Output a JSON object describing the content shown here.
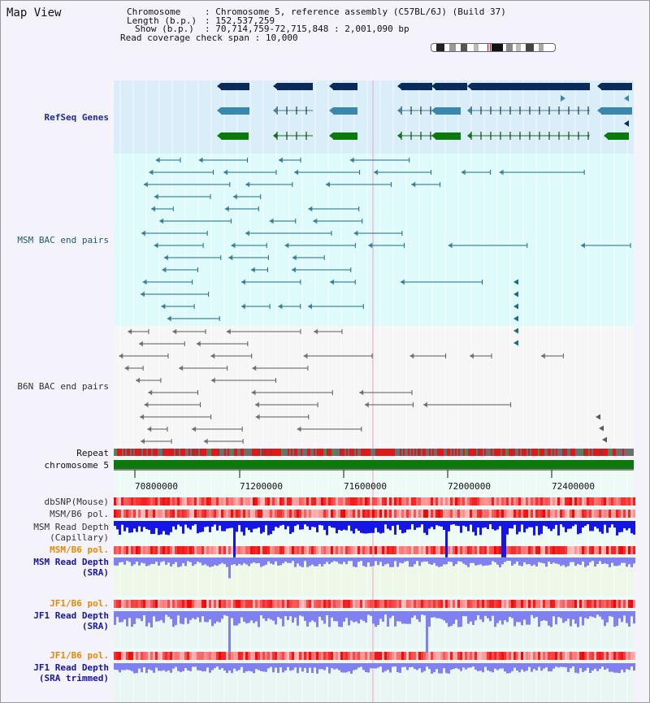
{
  "title": "Map View",
  "info": {
    "chromosome_label": "Chromosome",
    "chromosome_value": "Chromosome 5, reference assembly (C57BL/6J) (Build 37)",
    "length_label": "Length (b.p.)",
    "length_value": "152,537,259",
    "show_label": "Show (b.p.)",
    "show_value": "70,714,759-72,715,848 : 2,001,090 bp",
    "coverage_label": "Read coverage check span",
    "coverage_value": "10,000"
  },
  "tracks": {
    "refseq": "RefSeq Genes",
    "msm_bac": "MSM BAC end pairs",
    "b6n_bac": "B6N BAC end pairs",
    "repeat": "Repeat",
    "chromosome": "chromosome 5",
    "dbsnp": "dbSNP(Mouse)",
    "msm_b6_pol_1": "MSM/B6 pol.",
    "msm_depth_cap_1": "MSM Read Depth",
    "msm_depth_cap_2": "(Capillary)",
    "msm_b6_pol_2": "MSM/B6 pol.",
    "msm_depth_sra_1": "MSM Read Depth",
    "msm_depth_sra_2": "(SRA)",
    "jf1_pol_1": "JF1/B6 pol.",
    "jf1_depth_sra_1": "JF1 Read Depth",
    "jf1_depth_sra_2": "(SRA)",
    "jf1_pol_2": "JF1/B6 pol.",
    "jf1_depth_trim_1": "JF1 Read Depth",
    "jf1_depth_trim_2": "(SRA trimmed)"
  },
  "axis_ticks": [
    "70800000",
    "71200000",
    "71600000",
    "72000000",
    "72400000"
  ],
  "colors": {
    "gene_navy": "#0b2a5c",
    "gene_blue": "#3a86ad",
    "gene_green": "#0a7a0a",
    "msm_pair": "#1a6a8a",
    "b6n_pair": "#5a5a5a",
    "chrom_bar": "#0b7a0b",
    "depth_blue": "#1515e6",
    "depth_light": "#8080f0"
  }
}
